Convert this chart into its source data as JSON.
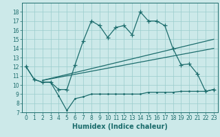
{
  "xlabel": "Humidex (Indice chaleur)",
  "bg_color": "#cce9e9",
  "line_color": "#1a6b6b",
  "grid_color": "#99cccc",
  "x_data": [
    0,
    1,
    2,
    3,
    4,
    5,
    6,
    7,
    8,
    9,
    10,
    11,
    12,
    13,
    14,
    15,
    16,
    17,
    18,
    19,
    20,
    21,
    22,
    23
  ],
  "main_y": [
    12.0,
    10.6,
    10.3,
    10.3,
    9.5,
    9.5,
    12.2,
    14.8,
    17.0,
    16.5,
    15.2,
    16.3,
    16.5,
    15.5,
    18.0,
    17.0,
    17.0,
    16.5,
    14.0,
    12.2,
    12.3,
    11.2,
    9.3,
    9.5
  ],
  "low_y": [
    12.0,
    10.6,
    10.3,
    10.3,
    8.8,
    7.2,
    8.5,
    8.7,
    9.0,
    9.0,
    9.0,
    9.0,
    9.0,
    9.0,
    9.0,
    9.2,
    9.2,
    9.2,
    9.2,
    9.3,
    9.3,
    9.3,
    9.3,
    9.5
  ],
  "trend1_x": [
    2,
    23
  ],
  "trend1_y": [
    10.5,
    15.0
  ],
  "trend2_x": [
    2,
    23
  ],
  "trend2_y": [
    10.5,
    14.0
  ],
  "ylim": [
    7,
    19
  ],
  "xlim": [
    -0.5,
    23.5
  ],
  "yticks": [
    7,
    8,
    9,
    10,
    11,
    12,
    13,
    14,
    15,
    16,
    17,
    18
  ],
  "xticks": [
    0,
    1,
    2,
    3,
    4,
    5,
    6,
    7,
    8,
    9,
    10,
    11,
    12,
    13,
    14,
    15,
    16,
    17,
    18,
    19,
    20,
    21,
    22,
    23
  ],
  "xlabel_fontsize": 7.0,
  "tick_fontsize": 5.5
}
